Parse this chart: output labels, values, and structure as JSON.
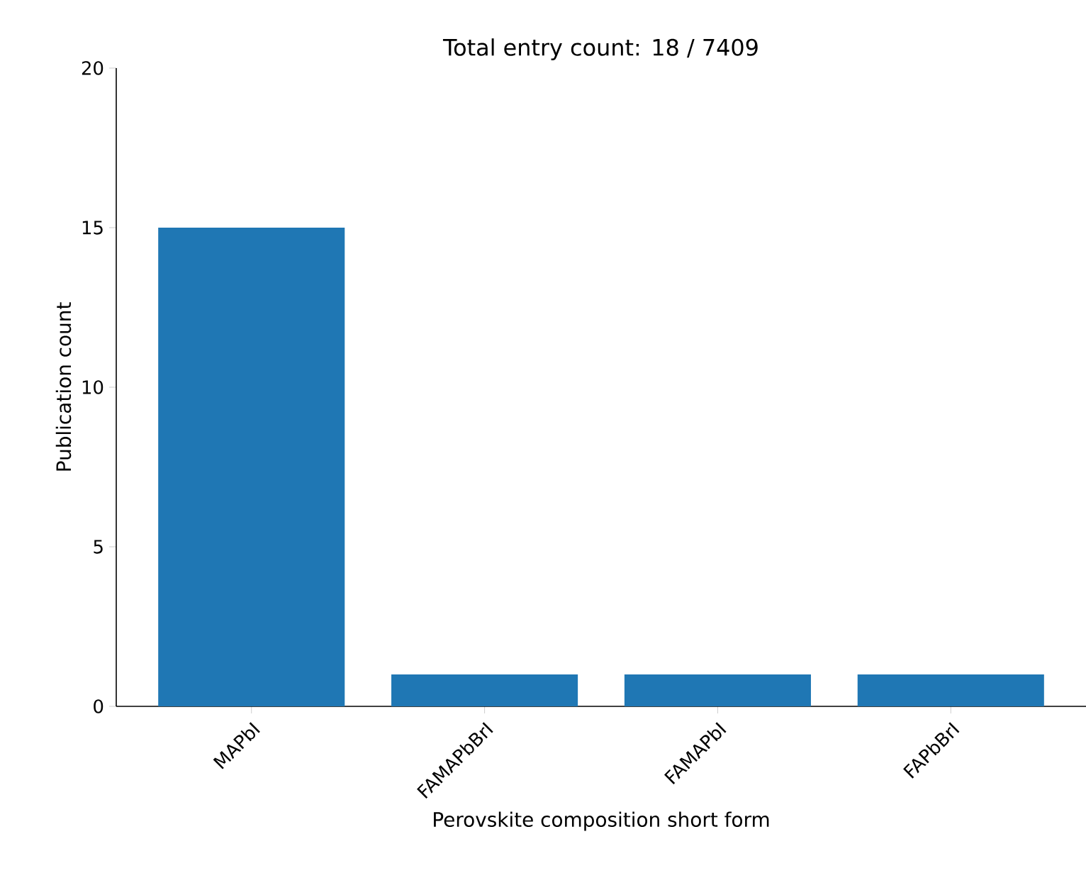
{
  "chart_data": {
    "type": "bar",
    "title": "Total entry count: 18 / 7409",
    "xlabel": "Perovskite composition short form",
    "ylabel": "Publication count",
    "categories": [
      "MAPbI",
      "FAMAPbBrI",
      "FAMAPbI",
      "FAPbBrI"
    ],
    "values": [
      15,
      1,
      1,
      1
    ],
    "color": "#1f77b4",
    "ylim": [
      0,
      20
    ],
    "yticks": [
      0,
      5,
      10,
      15,
      20
    ]
  }
}
